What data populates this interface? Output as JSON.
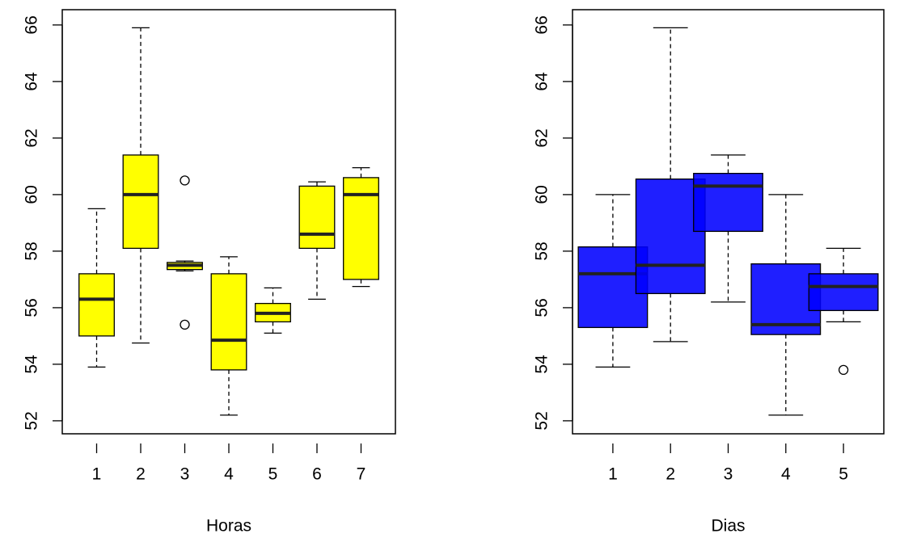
{
  "chart_data": [
    {
      "type": "boxplot",
      "xlabel": "Horas",
      "color": "#ffff00",
      "categories": [
        "1",
        "2",
        "3",
        "4",
        "5",
        "6",
        "7"
      ],
      "boxes": [
        {
          "min": 53.9,
          "q1": 55.0,
          "median": 56.3,
          "q3": 57.2,
          "max": 59.5,
          "outliers": []
        },
        {
          "min": 54.75,
          "q1": 58.1,
          "median": 60.0,
          "q3": 61.4,
          "max": 65.9,
          "outliers": []
        },
        {
          "min": 57.3,
          "q1": 57.35,
          "median": 57.5,
          "q3": 57.6,
          "max": 57.65,
          "outliers": [
            60.5,
            55.4
          ]
        },
        {
          "min": 52.2,
          "q1": 53.8,
          "median": 54.85,
          "q3": 57.2,
          "max": 57.8,
          "outliers": []
        },
        {
          "min": 55.1,
          "q1": 55.5,
          "median": 55.8,
          "q3": 56.15,
          "max": 56.7,
          "outliers": []
        },
        {
          "min": 56.3,
          "q1": 58.1,
          "median": 58.6,
          "q3": 60.3,
          "max": 60.45,
          "outliers": []
        },
        {
          "min": 56.75,
          "q1": 57.0,
          "median": 60.0,
          "q3": 60.6,
          "max": 60.95,
          "outliers": []
        }
      ],
      "ylim": [
        51.54,
        66.54
      ],
      "yticks": [
        52,
        54,
        56,
        58,
        60,
        62,
        64,
        66
      ]
    },
    {
      "type": "boxplot",
      "xlabel": "Dias",
      "color": "#0000ff",
      "categories": [
        "1",
        "2",
        "3",
        "4",
        "5"
      ],
      "boxes": [
        {
          "min": 53.9,
          "q1": 55.3,
          "median": 57.2,
          "q3": 58.15,
          "max": 60.0,
          "outliers": []
        },
        {
          "min": 54.8,
          "q1": 56.5,
          "median": 57.5,
          "q3": 60.55,
          "max": 65.9,
          "outliers": []
        },
        {
          "min": 56.2,
          "q1": 58.7,
          "median": 60.3,
          "q3": 60.75,
          "max": 61.4,
          "outliers": []
        },
        {
          "min": 52.2,
          "q1": 55.05,
          "median": 55.4,
          "q3": 57.55,
          "max": 60.0,
          "outliers": []
        },
        {
          "min": 55.5,
          "q1": 55.9,
          "median": 56.75,
          "q3": 57.2,
          "max": 58.1,
          "outliers": [
            53.8
          ]
        }
      ],
      "ylim": [
        51.54,
        66.54
      ],
      "yticks": [
        52,
        54,
        56,
        58,
        60,
        62,
        64,
        66
      ]
    }
  ]
}
